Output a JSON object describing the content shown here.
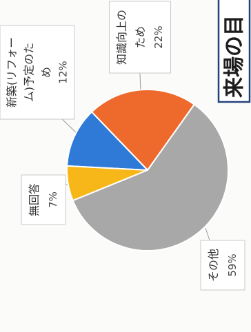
{
  "chart_data": {
    "type": "pie",
    "title": "来場の目",
    "value_suffix": "%",
    "slices": [
      {
        "label": "知識向上のため",
        "value": 22,
        "color": "#EE6A2C"
      },
      {
        "label": "新築(リフォーム)予定のため",
        "value": 12,
        "color": "#2E7AD6"
      },
      {
        "label": "無回答",
        "value": 7,
        "color": "#F7B718"
      },
      {
        "label": "その他",
        "value": 59,
        "color": "#A8A8A8"
      }
    ]
  },
  "colors": {
    "heading_border": "#24437C",
    "label_border": "#C9C9C9",
    "leader_line": "#9A9A9A"
  }
}
